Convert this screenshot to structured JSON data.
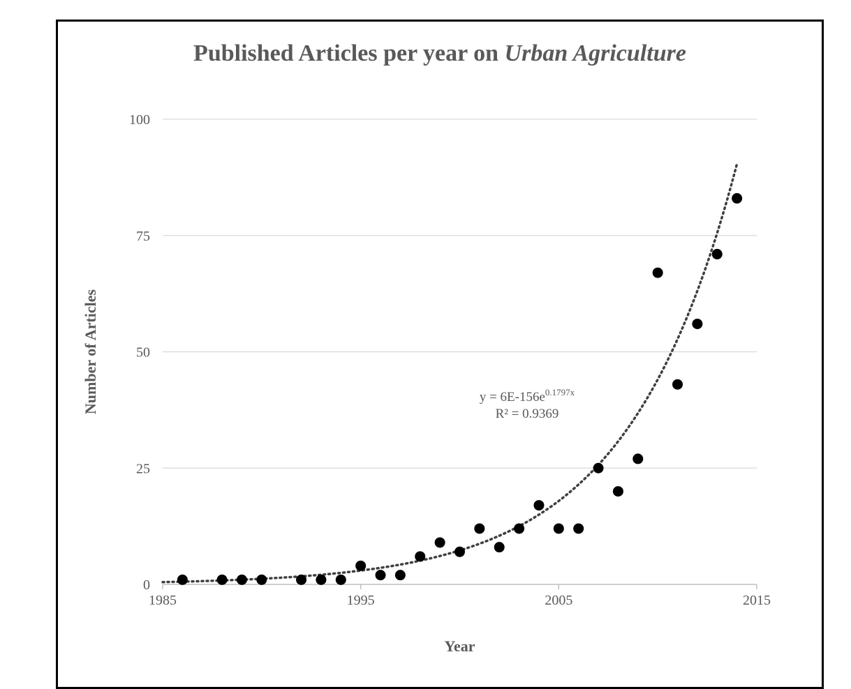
{
  "chart_data": {
    "type": "scatter",
    "title_main": "Published Articles per year on ",
    "title_italic": "Urban Agriculture",
    "xlabel": "Year",
    "ylabel": "Number of Articles",
    "xlim": [
      1985,
      2015
    ],
    "ylim": [
      0,
      100
    ],
    "x_ticks": [
      "1985",
      "1995",
      "2005",
      "2015"
    ],
    "y_ticks": [
      "0",
      "25",
      "50",
      "75",
      "100"
    ],
    "grid": true,
    "colors": {
      "points": "#000000",
      "trendline": "#404040",
      "grid": "#d9d9d9",
      "text": "#595959"
    },
    "points": [
      {
        "x": 1986,
        "y": 1
      },
      {
        "x": 1988,
        "y": 1
      },
      {
        "x": 1989,
        "y": 1
      },
      {
        "x": 1990,
        "y": 1
      },
      {
        "x": 1992,
        "y": 1
      },
      {
        "x": 1993,
        "y": 1
      },
      {
        "x": 1994,
        "y": 1
      },
      {
        "x": 1995,
        "y": 4
      },
      {
        "x": 1996,
        "y": 2
      },
      {
        "x": 1997,
        "y": 2
      },
      {
        "x": 1998,
        "y": 6
      },
      {
        "x": 1999,
        "y": 9
      },
      {
        "x": 2000,
        "y": 7
      },
      {
        "x": 2001,
        "y": 12
      },
      {
        "x": 2002,
        "y": 8
      },
      {
        "x": 2003,
        "y": 12
      },
      {
        "x": 2004,
        "y": 17
      },
      {
        "x": 2005,
        "y": 12
      },
      {
        "x": 2006,
        "y": 12
      },
      {
        "x": 2007,
        "y": 25
      },
      {
        "x": 2008,
        "y": 20
      },
      {
        "x": 2009,
        "y": 27
      },
      {
        "x": 2010,
        "y": 67
      },
      {
        "x": 2011,
        "y": 43
      },
      {
        "x": 2012,
        "y": 56
      },
      {
        "x": 2013,
        "y": 71
      },
      {
        "x": 2014,
        "y": 83
      }
    ],
    "trendline": {
      "type": "exponential",
      "coefficient": 6e-156,
      "rate": 0.1797,
      "equation_prefix": "y = 6E-156e",
      "equation_exponent": "0.1797x",
      "r_squared_label": "R² = 0.9369"
    }
  }
}
